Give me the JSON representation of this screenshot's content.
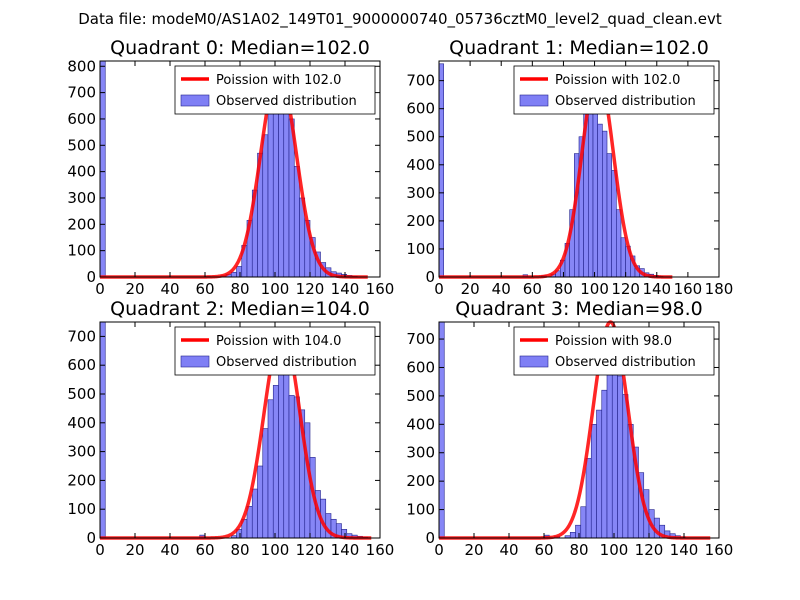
{
  "suptitle": "Data file: modeM0/AS1A02_149T01_9000000740_05736cztM0_level2_quad_clean.evt",
  "colors": {
    "bar_fill": "#7f7ff5",
    "bar_edge": "#23238c",
    "poisson_line": "#ff0000"
  },
  "legend_labels": {
    "observed": "Observed distribution"
  },
  "chart_data": [
    {
      "type": "bar",
      "title": "Quadrant 0: Median=102.0",
      "poisson_label": "Poission with 102.0",
      "median": 102.0,
      "xlim": [
        0,
        160
      ],
      "ylim": [
        0,
        820
      ],
      "xticks": [
        0,
        20,
        40,
        60,
        80,
        100,
        120,
        140,
        160
      ],
      "yticks": [
        0,
        100,
        200,
        300,
        400,
        500,
        600,
        700,
        800
      ],
      "bin_width": 3,
      "bins": [
        [
          0,
          820
        ],
        [
          60,
          2
        ],
        [
          69,
          5
        ],
        [
          72,
          10
        ],
        [
          75,
          18
        ],
        [
          78,
          40
        ],
        [
          81,
          120
        ],
        [
          84,
          215
        ],
        [
          87,
          330
        ],
        [
          90,
          470
        ],
        [
          93,
          540
        ],
        [
          96,
          650
        ],
        [
          99,
          775
        ],
        [
          102,
          800
        ],
        [
          105,
          670
        ],
        [
          108,
          600
        ],
        [
          111,
          420
        ],
        [
          114,
          300
        ],
        [
          117,
          215
        ],
        [
          120,
          150
        ],
        [
          123,
          95
        ],
        [
          126,
          55
        ],
        [
          129,
          35
        ],
        [
          132,
          20
        ],
        [
          135,
          15
        ],
        [
          138,
          10
        ],
        [
          141,
          6
        ],
        [
          144,
          3
        ]
      ],
      "poisson_curve": {
        "x_start": 0,
        "x_end": 153,
        "peak": 780
      }
    },
    {
      "type": "bar",
      "title": "Quadrant 1: Median=102.0",
      "poisson_label": "Poission with 102.0",
      "median": 102.0,
      "xlim": [
        0,
        180
      ],
      "ylim": [
        0,
        770
      ],
      "xticks": [
        0,
        20,
        40,
        60,
        80,
        100,
        120,
        140,
        160,
        180
      ],
      "yticks": [
        0,
        100,
        200,
        300,
        400,
        500,
        600,
        700
      ],
      "bin_width": 3,
      "bins": [
        [
          0,
          760
        ],
        [
          54,
          8
        ],
        [
          66,
          5
        ],
        [
          72,
          10
        ],
        [
          75,
          22
        ],
        [
          78,
          60
        ],
        [
          81,
          120
        ],
        [
          84,
          240
        ],
        [
          87,
          440
        ],
        [
          90,
          500
        ],
        [
          93,
          640
        ],
        [
          96,
          690
        ],
        [
          99,
          600
        ],
        [
          102,
          545
        ],
        [
          105,
          520
        ],
        [
          108,
          440
        ],
        [
          111,
          380
        ],
        [
          114,
          240
        ],
        [
          117,
          140
        ],
        [
          120,
          110
        ],
        [
          123,
          75
        ],
        [
          126,
          40
        ],
        [
          129,
          30
        ],
        [
          132,
          15
        ],
        [
          135,
          10
        ],
        [
          138,
          6
        ],
        [
          141,
          3
        ]
      ],
      "poisson_curve": {
        "x_start": 0,
        "x_end": 150,
        "peak": 730
      }
    },
    {
      "type": "bar",
      "title": "Quadrant 2: Median=104.0",
      "poisson_label": "Poission with 104.0",
      "median": 104.0,
      "xlim": [
        0,
        160
      ],
      "ylim": [
        0,
        750
      ],
      "xticks": [
        0,
        20,
        40,
        60,
        80,
        100,
        120,
        140,
        160
      ],
      "yticks": [
        0,
        100,
        200,
        300,
        400,
        500,
        600,
        700
      ],
      "bin_width": 3,
      "bins": [
        [
          0,
          750
        ],
        [
          57,
          10
        ],
        [
          75,
          8
        ],
        [
          78,
          30
        ],
        [
          81,
          65
        ],
        [
          84,
          110
        ],
        [
          87,
          170
        ],
        [
          90,
          250
        ],
        [
          93,
          380
        ],
        [
          96,
          480
        ],
        [
          99,
          530
        ],
        [
          102,
          640
        ],
        [
          105,
          580
        ],
        [
          108,
          495
        ],
        [
          111,
          490
        ],
        [
          114,
          445
        ],
        [
          117,
          400
        ],
        [
          120,
          280
        ],
        [
          123,
          165
        ],
        [
          126,
          135
        ],
        [
          129,
          85
        ],
        [
          132,
          65
        ],
        [
          135,
          50
        ],
        [
          138,
          30
        ],
        [
          141,
          15
        ],
        [
          144,
          10
        ],
        [
          147,
          6
        ],
        [
          150,
          3
        ]
      ],
      "poisson_curve": {
        "x_start": 0,
        "x_end": 155,
        "peak": 720
      }
    },
    {
      "type": "bar",
      "title": "Quadrant 3: Median=98.0",
      "poisson_label": "Poission with 98.0",
      "median": 98.0,
      "xlim": [
        0,
        160
      ],
      "ylim": [
        0,
        760
      ],
      "xticks": [
        0,
        20,
        40,
        60,
        80,
        100,
        120,
        140,
        160
      ],
      "yticks": [
        0,
        100,
        200,
        300,
        400,
        500,
        600,
        700
      ],
      "bin_width": 3,
      "bins": [
        [
          0,
          760
        ],
        [
          60,
          10
        ],
        [
          66,
          5
        ],
        [
          72,
          8
        ],
        [
          75,
          20
        ],
        [
          78,
          45
        ],
        [
          81,
          110
        ],
        [
          84,
          280
        ],
        [
          87,
          400
        ],
        [
          90,
          450
        ],
        [
          93,
          520
        ],
        [
          96,
          670
        ],
        [
          99,
          700
        ],
        [
          102,
          570
        ],
        [
          105,
          505
        ],
        [
          108,
          400
        ],
        [
          111,
          320
        ],
        [
          114,
          230
        ],
        [
          117,
          170
        ],
        [
          120,
          100
        ],
        [
          123,
          70
        ],
        [
          126,
          45
        ],
        [
          129,
          25
        ],
        [
          132,
          15
        ],
        [
          135,
          8
        ],
        [
          138,
          4
        ]
      ],
      "poisson_curve": {
        "x_start": 0,
        "x_end": 155,
        "peak": 760
      }
    }
  ]
}
